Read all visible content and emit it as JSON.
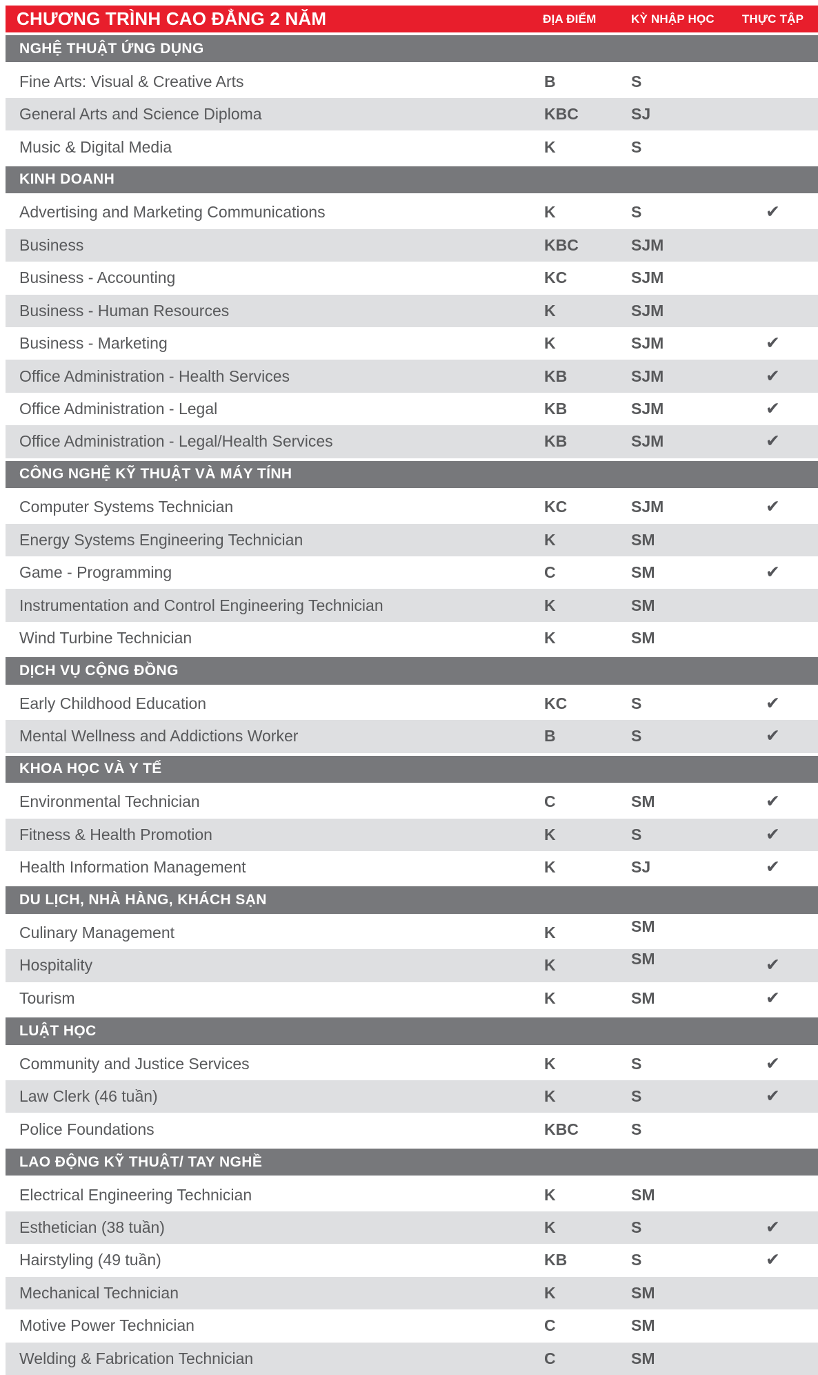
{
  "header": {
    "title": "CHƯƠNG TRÌNH CAO ĐẲNG 2 NĂM",
    "col_location": "ĐỊA ĐIỂM",
    "col_intake": "KỲ NHẬP HỌC",
    "col_coop": "THỰC TẬP"
  },
  "legend": {
    "check_symbol": "✔"
  },
  "colors": {
    "header_red": "#E81E2C",
    "section_bar_gray": "#77787B",
    "row_stripe_gray": "#DEDFE1",
    "text_gray": "#58595B",
    "check_gray": "#55565A"
  },
  "sections": [
    {
      "name": "NGHỆ THUẬT ỨNG DỤNG",
      "programs": [
        {
          "name": "Fine Arts: Visual & Creative Arts",
          "location": "B",
          "intake": "S",
          "coop": false
        },
        {
          "name": "General Arts and Science Diploma",
          "location": "KBC",
          "intake": "SJ",
          "coop": false
        },
        {
          "name": "Music & Digital Media",
          "location": "K",
          "intake": "S",
          "coop": false
        }
      ]
    },
    {
      "name": "KINH DOANH",
      "programs": [
        {
          "name": "Advertising and Marketing Communications",
          "location": "K",
          "intake": "S",
          "coop": true
        },
        {
          "name": "Business",
          "location": "KBC",
          "intake": "SJM",
          "coop": false
        },
        {
          "name": "Business - Accounting",
          "location": "KC",
          "intake": "SJM",
          "coop": false
        },
        {
          "name": "Business - Human Resources",
          "location": "K",
          "intake": "SJM",
          "coop": false
        },
        {
          "name": "Business - Marketing",
          "location": "K",
          "intake": "SJM",
          "coop": true
        },
        {
          "name": "Office Administration - Health Services",
          "location": "KB",
          "intake": "SJM",
          "coop": true
        },
        {
          "name": "Office Administration - Legal",
          "location": "KB",
          "intake": "SJM",
          "coop": true
        },
        {
          "name": "Office Administration - Legal/Health Services",
          "location": "KB",
          "intake": "SJM",
          "coop": true
        }
      ]
    },
    {
      "name": "CÔNG NGHỆ KỸ THUẬT VÀ MÁY TÍNH",
      "programs": [
        {
          "name": "Computer Systems Technician",
          "location": "KC",
          "intake": "SJM",
          "coop": true
        },
        {
          "name": "Energy Systems Engineering Technician",
          "location": "K",
          "intake": "SM",
          "coop": false
        },
        {
          "name": "Game - Programming",
          "location": "C",
          "intake": "SM",
          "coop": true
        },
        {
          "name": "Instrumentation and Control Engineering Technician",
          "location": "K",
          "intake": "SM",
          "coop": false
        },
        {
          "name": "Wind Turbine Technician",
          "location": "K",
          "intake": "SM",
          "coop": false
        }
      ]
    },
    {
      "name": "DỊCH VỤ CỘNG ĐỒNG",
      "programs": [
        {
          "name": "Early Childhood Education",
          "location": "KC",
          "intake": "S",
          "coop": true
        },
        {
          "name": "Mental Wellness and Addictions Worker",
          "location": "B",
          "intake": "S",
          "coop": true
        }
      ]
    },
    {
      "name": "KHOA HỌC VÀ Y TẾ",
      "programs": [
        {
          "name": "Environmental Technician",
          "location": "C",
          "intake": "SM",
          "coop": true
        },
        {
          "name": "Fitness & Health Promotion",
          "location": "K",
          "intake": "S",
          "coop": true
        },
        {
          "name": "Health Information Management",
          "location": "K",
          "intake": "SJ",
          "coop": true
        }
      ]
    },
    {
      "name": "DU LỊCH, NHÀ HÀNG, KHÁCH SẠN",
      "programs": [
        {
          "name": "Culinary Management",
          "location": "K",
          "intake": "SM",
          "coop": false,
          "intake_raised": true
        },
        {
          "name": "Hospitality",
          "location": "K",
          "intake": "SM",
          "coop": true,
          "intake_raised": true
        },
        {
          "name": "Tourism",
          "location": "K",
          "intake": "SM",
          "coop": true
        }
      ]
    },
    {
      "name": "LUẬT HỌC",
      "programs": [
        {
          "name": "Community and Justice Services",
          "location": "K",
          "intake": "S",
          "coop": true
        },
        {
          "name": "Law Clerk (46 tuần)",
          "location": "K",
          "intake": "S",
          "coop": true
        },
        {
          "name": "Police Foundations",
          "location": "KBC",
          "intake": "S",
          "coop": false
        }
      ]
    },
    {
      "name": "LAO ĐỘNG KỸ THUẬT/ TAY NGHỀ",
      "programs": [
        {
          "name": "Electrical Engineering Technician",
          "location": "K",
          "intake": "SM",
          "coop": false
        },
        {
          "name": "Esthetician (38 tuần)",
          "location": "K",
          "intake": "S",
          "coop": true
        },
        {
          "name": "Hairstyling (49 tuần)",
          "location": "KB",
          "intake": "S",
          "coop": true
        },
        {
          "name": "Mechanical Technician",
          "location": "K",
          "intake": "SM",
          "coop": false
        },
        {
          "name": "Motive Power Technician",
          "location": "C",
          "intake": "SM",
          "coop": false
        },
        {
          "name": "Welding & Fabrication Technician",
          "location": "C",
          "intake": "SM",
          "coop": false
        }
      ]
    }
  ]
}
